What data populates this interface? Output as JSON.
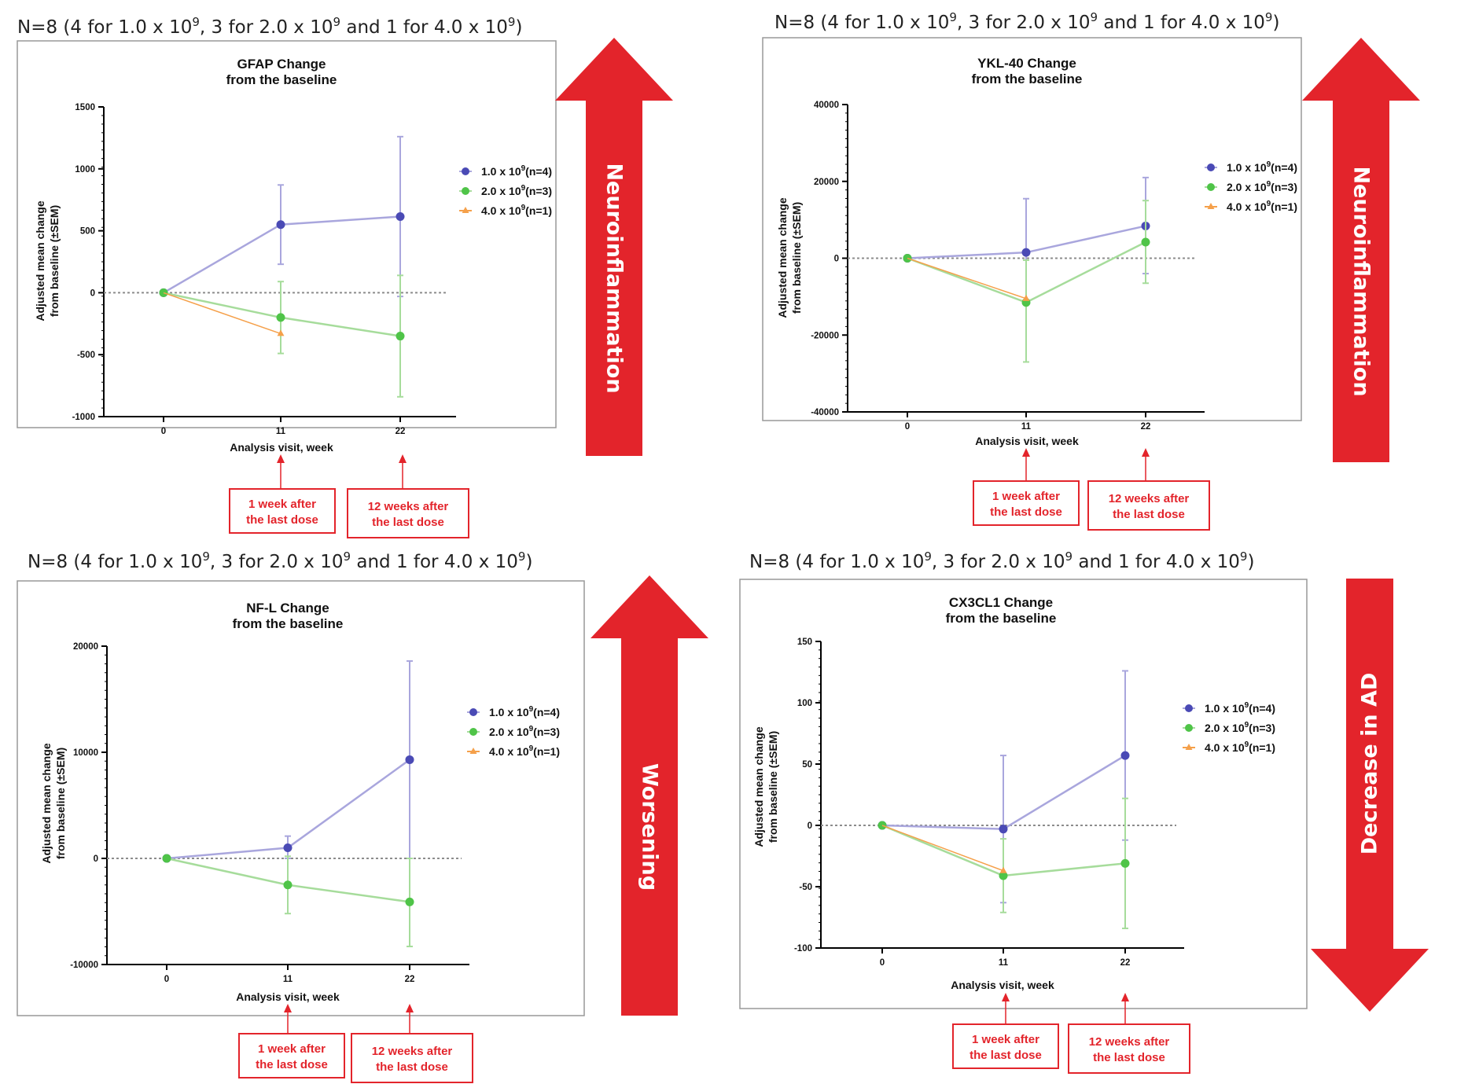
{
  "colors": {
    "series1": "#4a4ab5",
    "series1_light": "#a9a6dd",
    "series2": "#4fc448",
    "series2_light": "#a6dc9b",
    "series3": "#f5a04a",
    "arrow": "#e3242b",
    "annotation": "#e3242b"
  },
  "legend": [
    {
      "base": "1.0 x 10",
      "exp": "9",
      "n": "(n=4)"
    },
    {
      "base": "2.0 x 10",
      "exp": "9",
      "n": "(n=3)"
    },
    {
      "base": "4.0 x 10",
      "exp": "9",
      "n": "(n=1)"
    }
  ],
  "sample_header": {
    "a": "N=8 (4 for 1.0 x 10",
    "b": ", 3 for 2.0 x 10",
    "c": " and 1 for 4.0 x 10",
    "d": ")",
    "exp": "9"
  },
  "annotations": {
    "week1": [
      "1 week after",
      "the last dose"
    ],
    "week12": [
      "12 weeks after",
      "the last dose"
    ]
  },
  "chart_data": [
    {
      "type": "line",
      "title": [
        "GFAP Change",
        "from the baseline"
      ],
      "xlabel": "Analysis visit, week",
      "ylabel": [
        "Adjusted mean change",
        "from baseline (±SEM)"
      ],
      "x": [
        0,
        11,
        22
      ],
      "ylim": [
        -1000,
        1500
      ],
      "yticks": [
        1500,
        1000,
        500,
        0,
        -500,
        -1000
      ],
      "series": [
        {
          "name": "1.0 x 10^9 (n=4)",
          "values": [
            0,
            550,
            615
          ],
          "err_low": [
            0,
            230,
            -30
          ],
          "err_high": [
            0,
            870,
            1260
          ]
        },
        {
          "name": "2.0 x 10^9 (n=3)",
          "values": [
            0,
            -200,
            -350
          ],
          "err_low": [
            0,
            -490,
            -840
          ],
          "err_high": [
            0,
            90,
            140
          ]
        },
        {
          "name": "4.0 x 10^9 (n=1)",
          "values": [
            0,
            -330,
            null
          ]
        }
      ],
      "arrow": {
        "direction": "up",
        "label": "Neuroinflammation"
      }
    },
    {
      "type": "line",
      "title": [
        "YKL-40 Change",
        "from the baseline"
      ],
      "xlabel": "Analysis visit, week",
      "ylabel": [
        "Adjusted mean change",
        "from baseline (±SEM)"
      ],
      "x": [
        0,
        11,
        22
      ],
      "ylim": [
        -40000,
        40000
      ],
      "yticks": [
        40000,
        20000,
        0,
        -20000,
        -40000
      ],
      "series": [
        {
          "name": "1.0 x 10^9 (n=4)",
          "values": [
            0,
            1500,
            8400
          ],
          "err_low": [
            0,
            -12000,
            -4000
          ],
          "err_high": [
            0,
            15500,
            21000
          ]
        },
        {
          "name": "2.0 x 10^9 (n=3)",
          "values": [
            0,
            -11500,
            4200
          ],
          "err_low": [
            0,
            -27000,
            -6500
          ],
          "err_high": [
            0,
            -500,
            15000
          ]
        },
        {
          "name": "4.0 x 10^9 (n=1)",
          "values": [
            0,
            -10500,
            null
          ]
        }
      ],
      "arrow": {
        "direction": "up",
        "label": "Neuroinflammation"
      }
    },
    {
      "type": "line",
      "title": [
        "NF-L Change",
        "from the baseline"
      ],
      "xlabel": "Analysis visit, week",
      "ylabel": [
        "Adjusted mean change",
        "from baseline (±SEM)"
      ],
      "x": [
        0,
        11,
        22
      ],
      "ylim": [
        -10000,
        20000
      ],
      "yticks": [
        20000,
        10000,
        0,
        -10000
      ],
      "series": [
        {
          "name": "1.0 x 10^9 (n=4)",
          "values": [
            0,
            1000,
            9300
          ],
          "err_low": [
            0,
            0,
            0
          ],
          "err_high": [
            0,
            2100,
            18600
          ]
        },
        {
          "name": "2.0 x 10^9 (n=3)",
          "values": [
            0,
            -2500,
            -4100
          ],
          "err_low": [
            0,
            -5200,
            -8300
          ],
          "err_high": [
            0,
            200,
            0
          ]
        },
        {
          "name": "4.0 x 10^9 (n=1)",
          "values": [
            0,
            null,
            null
          ]
        }
      ],
      "arrow": {
        "direction": "up",
        "label": "Worsening"
      }
    },
    {
      "type": "line",
      "title": [
        "CX3CL1 Change",
        "from the baseline"
      ],
      "xlabel": "Analysis visit, week",
      "ylabel": [
        "Adjusted mean change",
        "from baseline (±SEM)"
      ],
      "x": [
        0,
        11,
        22
      ],
      "ylim": [
        -100,
        150
      ],
      "yticks": [
        150,
        100,
        50,
        0,
        -50,
        -100
      ],
      "series": [
        {
          "name": "1.0 x 10^9 (n=4)",
          "values": [
            0,
            -3,
            57
          ],
          "err_low": [
            0,
            -63,
            -12
          ],
          "err_high": [
            0,
            57,
            126
          ]
        },
        {
          "name": "2.0 x 10^9 (n=3)",
          "values": [
            0,
            -41,
            -31
          ],
          "err_low": [
            0,
            -71,
            -84
          ],
          "err_high": [
            0,
            -11,
            22
          ]
        },
        {
          "name": "4.0 x 10^9 (n=1)",
          "values": [
            0,
            -37,
            null
          ]
        }
      ],
      "arrow": {
        "direction": "down",
        "label": "Decrease in AD"
      }
    }
  ]
}
